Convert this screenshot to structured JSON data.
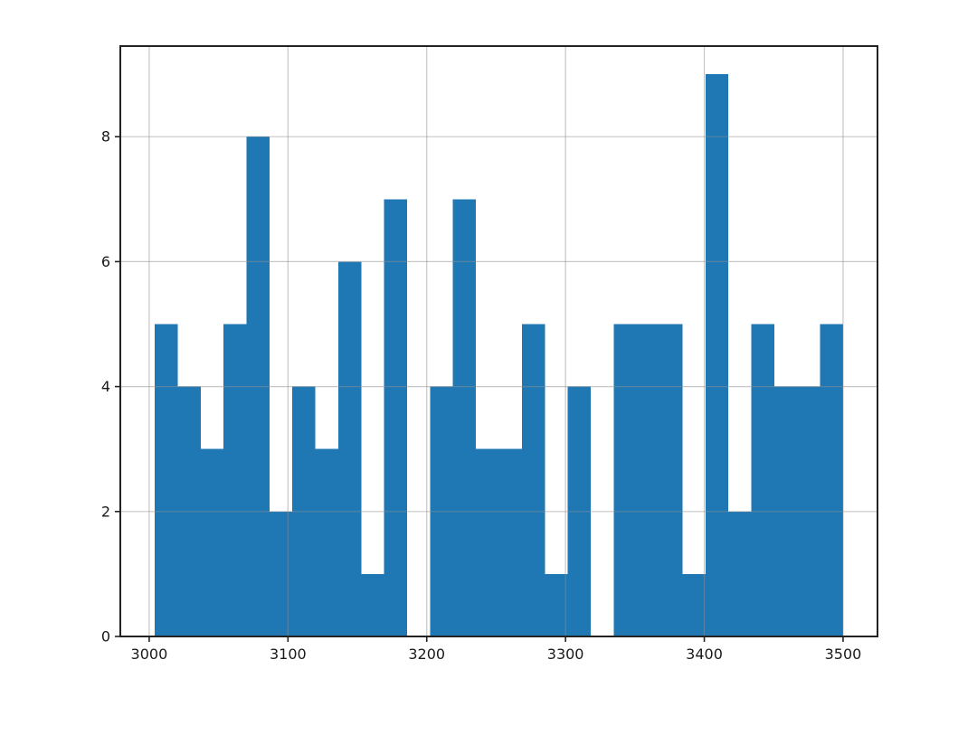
{
  "figure": {
    "background": "#ffffff"
  },
  "chart_data": {
    "type": "bar",
    "subtype": "histogram",
    "title": "",
    "xlabel": "",
    "ylabel": "",
    "legend": null,
    "grid": true,
    "bar_color": "#1f77b4",
    "grid_color": "#8f8f8f",
    "axis_color": "#222222",
    "tick_label_color": "#1a1a1a",
    "xlim": [
      2979.2,
      3524.8
    ],
    "ylim": [
      0,
      9.45
    ],
    "xtick_values": [
      3000,
      3100,
      3200,
      3300,
      3400,
      3500
    ],
    "xtick_labels": [
      "3000",
      "3100",
      "3200",
      "3300",
      "3400",
      "3500"
    ],
    "ytick_values": [
      0,
      2,
      4,
      6,
      8
    ],
    "ytick_labels": [
      "0",
      "2",
      "4",
      "6",
      "8"
    ],
    "bin_start": 3004,
    "bin_width": 16.5333,
    "bin_edges": [
      3004.0,
      3020.5,
      3037.1,
      3053.6,
      3070.1,
      3086.7,
      3103.2,
      3119.7,
      3136.3,
      3152.8,
      3169.3,
      3185.9,
      3202.4,
      3218.9,
      3235.5,
      3252.0,
      3268.5,
      3285.1,
      3301.6,
      3318.1,
      3334.7,
      3351.2,
      3367.7,
      3384.3,
      3400.8,
      3417.3,
      3433.9,
      3450.4,
      3466.9,
      3483.5,
      3500.0
    ],
    "counts": [
      5,
      4,
      3,
      5,
      8,
      2,
      4,
      3,
      6,
      1,
      7,
      0,
      4,
      7,
      3,
      3,
      5,
      1,
      4,
      0,
      5,
      5,
      5,
      1,
      9,
      2,
      5,
      4,
      4,
      5
    ]
  }
}
